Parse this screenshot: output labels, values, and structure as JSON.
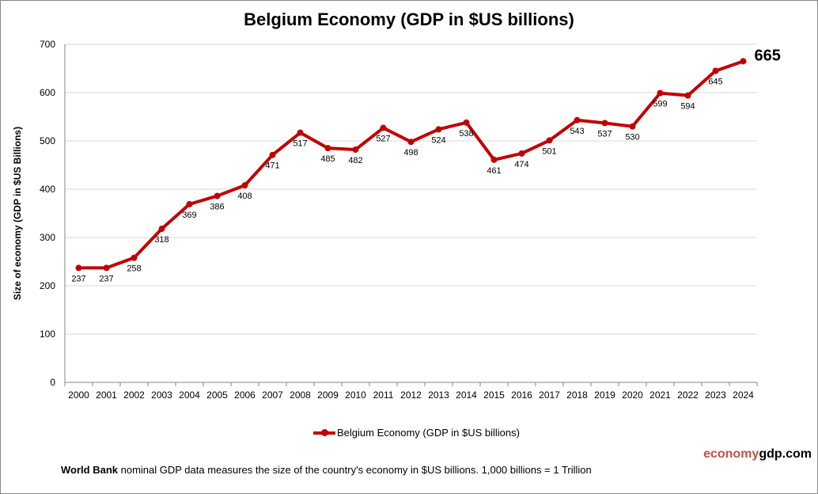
{
  "chart_data": {
    "type": "line",
    "title": "Belgium Economy (GDP in $US billions)",
    "ylabel": "Size of economy (GDP in $US Billions)",
    "xlabel": "",
    "ylim": [
      0,
      700
    ],
    "yticks": [
      0,
      100,
      200,
      300,
      400,
      500,
      600,
      700
    ],
    "grid": true,
    "legend_placement": "bottom",
    "categories": [
      "2000",
      "2001",
      "2002",
      "2003",
      "2004",
      "2005",
      "2006",
      "2007",
      "2008",
      "2009",
      "2010",
      "2011",
      "2012",
      "2013",
      "2014",
      "2015",
      "2016",
      "2017",
      "2018",
      "2019",
      "2020",
      "2021",
      "2022",
      "2023",
      "2024"
    ],
    "series": [
      {
        "name": "Belgium Economy (GDP in $US billions)",
        "color": "#c00000",
        "values": [
          237,
          237,
          258,
          318,
          369,
          386,
          408,
          471,
          517,
          485,
          482,
          527,
          498,
          524,
          538,
          461,
          474,
          501,
          543,
          537,
          530,
          599,
          594,
          645,
          665
        ]
      }
    ]
  },
  "brand": {
    "part1": "economy",
    "part2": "gdp.com"
  },
  "note": {
    "bold": "World Bank",
    "text": " nominal GDP data  measures the size of the country's economy in $US billions. 1,000 billions = 1 Trillion"
  }
}
